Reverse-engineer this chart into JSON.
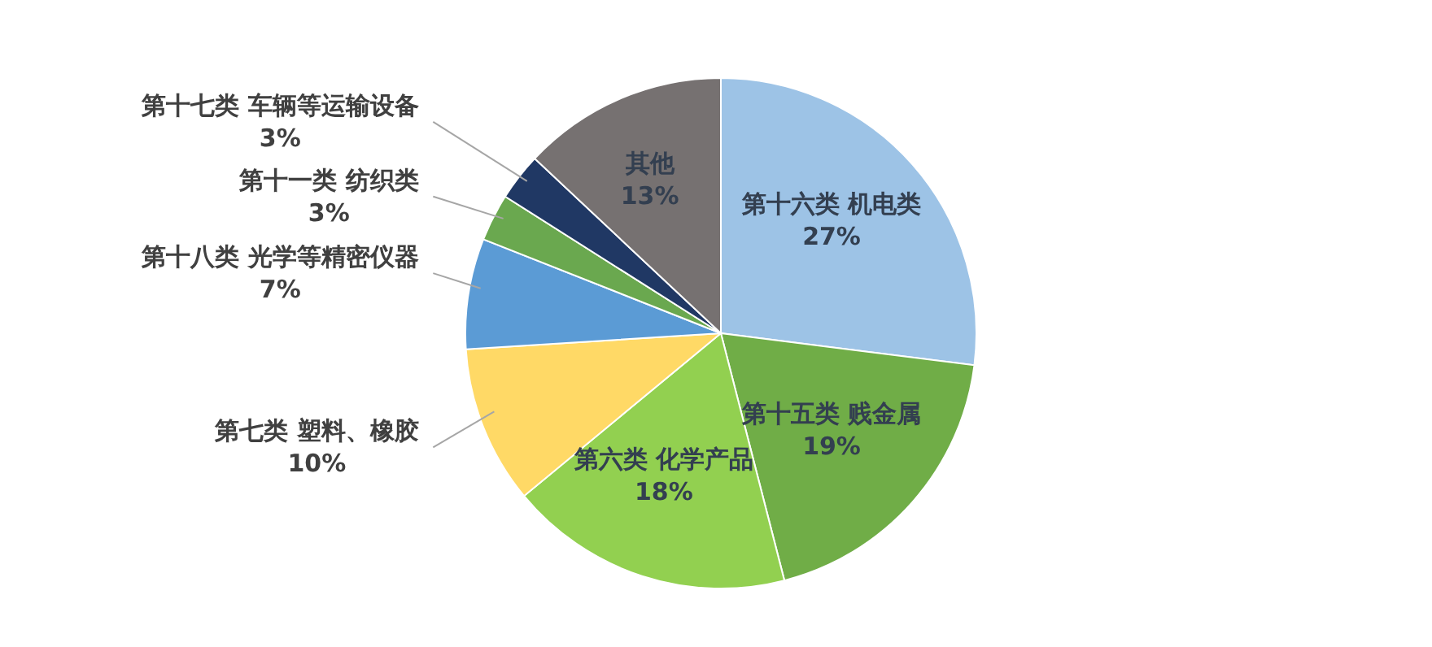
{
  "chart_data": {
    "type": "pie",
    "categories": [
      "第十六类 机电类",
      "第十五类 贱金属",
      "第六类 化学产品",
      "第七类 塑料、橡胶",
      "第十八类 光学等精密仪器",
      "第十一类 纺织类",
      "第十七类 车辆等运输设备",
      "其他"
    ],
    "values": [
      27,
      19,
      18,
      10,
      7,
      3,
      3,
      13
    ],
    "value_labels": [
      "27%",
      "19%",
      "18%",
      "10%",
      "7%",
      "3%",
      "3%",
      "13%"
    ],
    "colors": [
      "#9dc3e6",
      "#70ad47",
      "#92d050",
      "#ffd966",
      "#5b9bd5",
      "#6aa84f",
      "#203864",
      "#767171"
    ]
  }
}
